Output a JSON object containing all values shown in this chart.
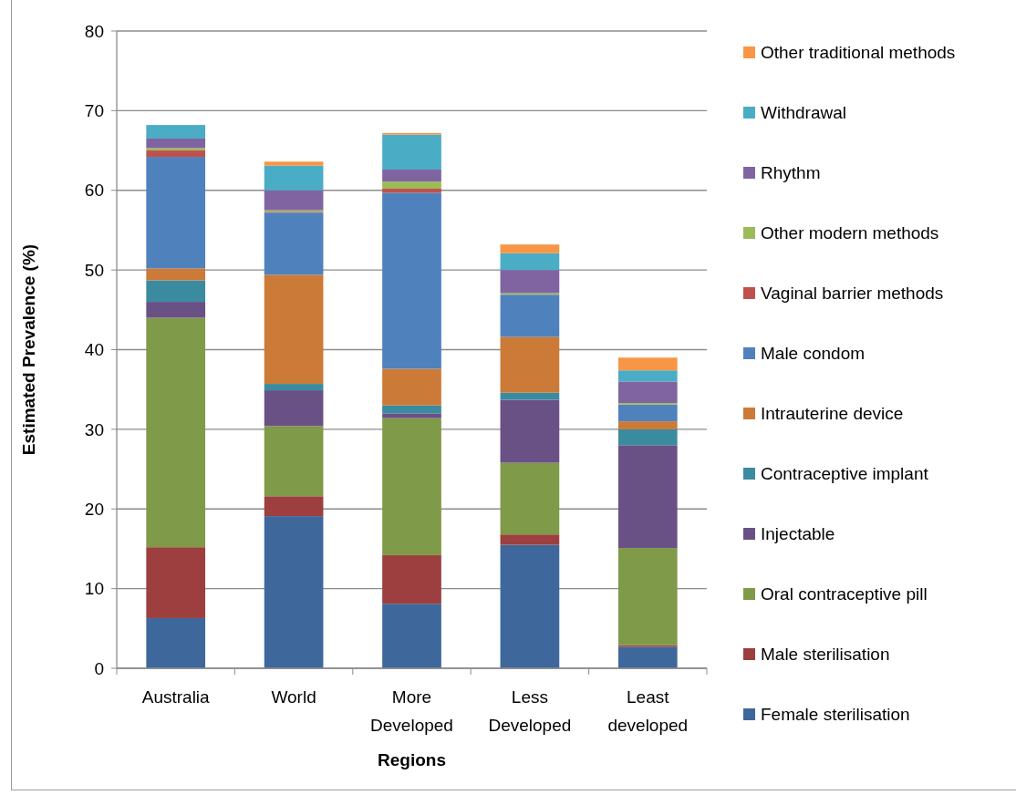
{
  "chart_data": {
    "type": "bar",
    "stacked": true,
    "xlabel": "Regions",
    "ylabel": "Estimated Prevalence (%)",
    "categories": [
      "Australia",
      "World",
      "More Developed",
      "Less Developed",
      "Least developed"
    ],
    "series": [
      {
        "name": "Female sterilisation",
        "color": "#3e689b",
        "values": [
          6.3,
          19.1,
          8.1,
          15.5,
          2.7
        ]
      },
      {
        "name": "Male sterilisation",
        "color": "#9c3f3e",
        "values": [
          8.9,
          2.5,
          6.1,
          1.3,
          0.2
        ]
      },
      {
        "name": "Oral contraceptive pill",
        "color": "#7f9a48",
        "values": [
          28.8,
          8.8,
          17.2,
          9.0,
          12.2
        ]
      },
      {
        "name": "Injectable",
        "color": "#695185",
        "values": [
          2.0,
          4.5,
          0.6,
          7.9,
          12.9
        ]
      },
      {
        "name": "Contraceptive implant",
        "color": "#3b8ba0",
        "values": [
          2.7,
          0.8,
          1.0,
          0.9,
          2.0
        ]
      },
      {
        "name": "Intrauterine device",
        "color": "#cc7a37",
        "values": [
          1.5,
          13.7,
          4.6,
          7.0,
          1.0
        ]
      },
      {
        "name": "Male condom",
        "color": "#4f81bd",
        "values": [
          14.0,
          7.8,
          22.1,
          5.3,
          2.1
        ]
      },
      {
        "name": "Vaginal barrier methods",
        "color": "#c0504d",
        "values": [
          0.8,
          0.1,
          0.5,
          0.0,
          0.0
        ]
      },
      {
        "name": "Other modern methods",
        "color": "#9bbb59",
        "values": [
          0.3,
          0.2,
          0.9,
          0.2,
          0.2
        ]
      },
      {
        "name": "Rhythm",
        "color": "#8064a2",
        "values": [
          1.2,
          2.5,
          1.5,
          2.9,
          2.7
        ]
      },
      {
        "name": "Withdrawal",
        "color": "#4bacc6",
        "values": [
          1.7,
          3.1,
          4.4,
          2.1,
          1.4
        ]
      },
      {
        "name": "Other traditional methods",
        "color": "#f79646",
        "values": [
          0.0,
          0.5,
          0.2,
          1.1,
          1.6
        ]
      }
    ],
    "ylim": [
      0,
      80
    ],
    "yticks": [
      0,
      10,
      20,
      30,
      40,
      50,
      60,
      70,
      80
    ],
    "grid": "y",
    "legend": "right"
  }
}
